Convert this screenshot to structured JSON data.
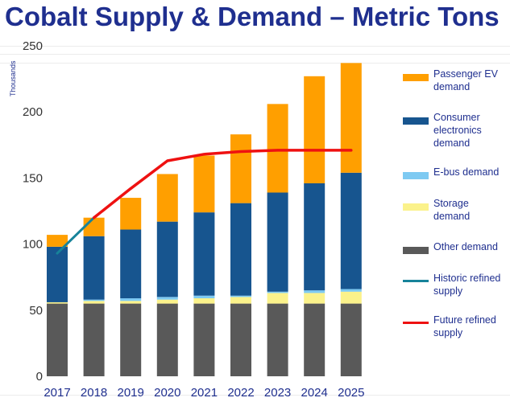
{
  "title": "Cobalt Supply & Demand – Metric Tons",
  "chart_data": {
    "type": "bar",
    "stacked": true,
    "categories": [
      "2017",
      "2018",
      "2019",
      "2020",
      "2021",
      "2022",
      "2023",
      "2024",
      "2025"
    ],
    "y_unit_label": "Thousands",
    "ylim": [
      0,
      250
    ],
    "yticks": [
      0,
      50,
      100,
      150,
      200,
      250
    ],
    "grid": false,
    "legend_position": "right",
    "series": [
      {
        "name": "Other demand",
        "color": "#595959",
        "values": [
          55,
          55,
          55,
          55,
          55,
          55,
          55,
          55,
          55
        ]
      },
      {
        "name": "Storage demand",
        "color": "#fbf28b",
        "values": [
          1,
          2,
          2,
          3,
          4,
          5,
          8,
          8,
          9
        ]
      },
      {
        "name": "E-bus demand",
        "color": "#7ecaf2",
        "values": [
          0,
          1,
          2,
          2,
          2,
          1,
          1,
          2,
          2
        ]
      },
      {
        "name": "Consumer electronics demand",
        "color": "#17558f",
        "values": [
          42,
          48,
          52,
          57,
          63,
          70,
          75,
          81,
          88
        ]
      },
      {
        "name": "Passenger EV demand",
        "color": "#ff9f00",
        "values": [
          9,
          14,
          24,
          36,
          43,
          52,
          67,
          81,
          83
        ]
      }
    ],
    "lines": [
      {
        "name": "Historic refined supply",
        "color": "#17839a",
        "x": [
          "2017",
          "2018"
        ],
        "values": [
          93,
          120
        ]
      },
      {
        "name": "Future refined supply",
        "color": "#ee1111",
        "x": [
          "2018",
          "2019",
          "2020",
          "2021",
          "2022",
          "2023",
          "2024",
          "2025"
        ],
        "values": [
          120,
          142,
          163,
          168,
          170,
          171,
          171,
          171
        ]
      }
    ]
  }
}
